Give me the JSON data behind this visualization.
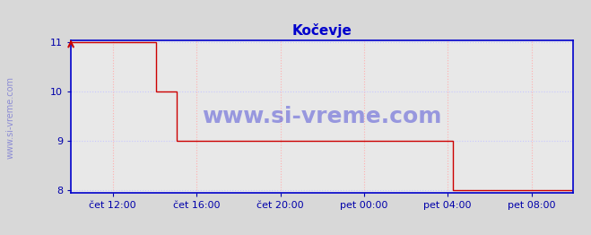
{
  "title": "Kočevje",
  "title_color": "#0000cc",
  "bg_color": "#d8d8d8",
  "plot_bg_color": "#e8e8e8",
  "grid_color_major": "#c8c8ff",
  "grid_color_minor": "#ffb0b0",
  "line_color": "#cc0000",
  "axis_color": "#0000cc",
  "watermark_text": "www.si-vreme.com",
  "watermark_color": "#0000cc",
  "watermark_alpha": 0.35,
  "side_text": "www.si-vreme.com",
  "ylim": [
    8,
    11
  ],
  "yticks": [
    8,
    9,
    10,
    11
  ],
  "xlabel_color": "#0000aa",
  "ylabel_color": "#0000aa",
  "legend_color": "#cc0000",
  "x_tick_labels": [
    "čet 12:00",
    "čet 16:00",
    "čet 20:00",
    "pet 00:00",
    "pet 04:00",
    "pet 08:00"
  ],
  "x_tick_positions": [
    0.083,
    0.25,
    0.417,
    0.583,
    0.75,
    0.917
  ],
  "data_x": [
    0.0,
    0.04,
    0.04,
    0.17,
    0.17,
    0.21,
    0.21,
    0.27,
    0.27,
    0.73,
    0.73,
    0.76,
    0.76,
    1.0
  ],
  "data_y": [
    11.0,
    11.0,
    11.0,
    11.0,
    10.0,
    10.0,
    9.0,
    9.0,
    9.0,
    9.0,
    9.0,
    9.0,
    8.0,
    8.0
  ],
  "font_family": "DejaVu Sans"
}
